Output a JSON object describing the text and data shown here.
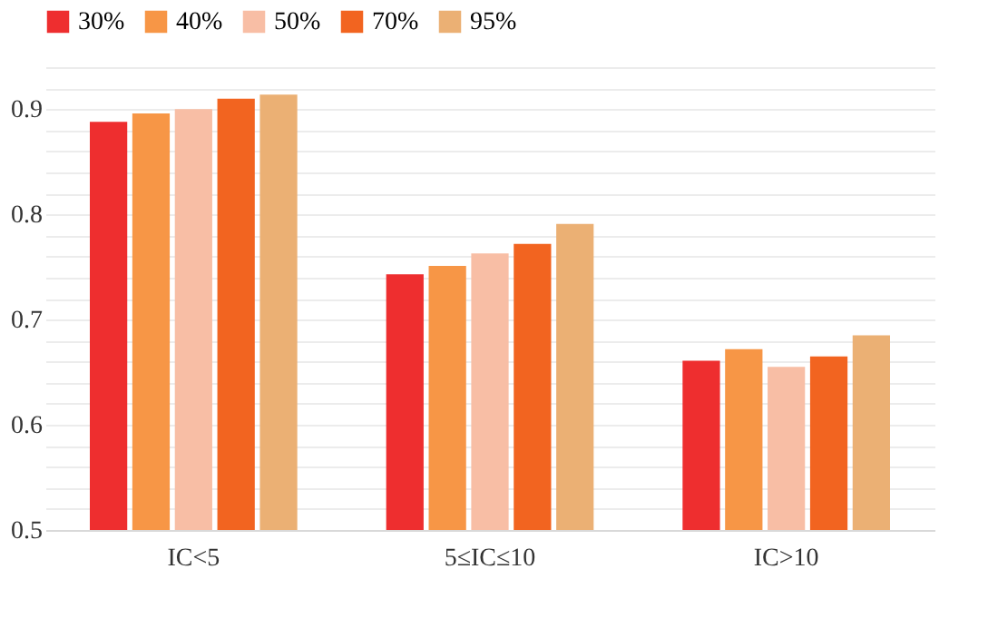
{
  "chart_data": {
    "type": "bar",
    "categories": [
      "IC<5",
      "5≤IC≤10",
      "IC>10"
    ],
    "series": [
      {
        "name": "30%",
        "color": "#ee2e2f",
        "values": [
          0.888,
          0.743,
          0.661
        ]
      },
      {
        "name": "40%",
        "color": "#f79646",
        "values": [
          0.896,
          0.751,
          0.672
        ]
      },
      {
        "name": "50%",
        "color": "#f8bea5",
        "values": [
          0.9,
          0.763,
          0.655
        ]
      },
      {
        "name": "70%",
        "color": "#f26420",
        "values": [
          0.91,
          0.772,
          0.665
        ]
      },
      {
        "name": "95%",
        "color": "#ebb074",
        "values": [
          0.914,
          0.791,
          0.685
        ]
      }
    ],
    "ylim": [
      0.5,
      0.94
    ],
    "yticks": [
      0.5,
      {
        "value": 0.52,
        "label": null
      },
      {
        "value": 0.54,
        "label": null
      },
      {
        "value": 0.56,
        "label": null
      },
      {
        "value": 0.58,
        "label": null
      },
      0.6,
      {
        "value": 0.62,
        "label": null
      },
      {
        "value": 0.64,
        "label": null
      },
      {
        "value": 0.66,
        "label": null
      },
      {
        "value": 0.68,
        "label": null
      },
      0.7,
      {
        "value": 0.72,
        "label": null
      },
      {
        "value": 0.74,
        "label": null
      },
      {
        "value": 0.76,
        "label": null
      },
      {
        "value": 0.78,
        "label": null
      },
      0.8,
      {
        "value": 0.82,
        "label": null
      },
      {
        "value": 0.84,
        "label": null
      },
      {
        "value": 0.86,
        "label": null
      },
      {
        "value": 0.88,
        "label": null
      },
      0.9,
      {
        "value": 0.92,
        "label": null
      },
      {
        "value": 0.94,
        "label": null
      }
    ],
    "grid": "y",
    "legend": "top"
  }
}
